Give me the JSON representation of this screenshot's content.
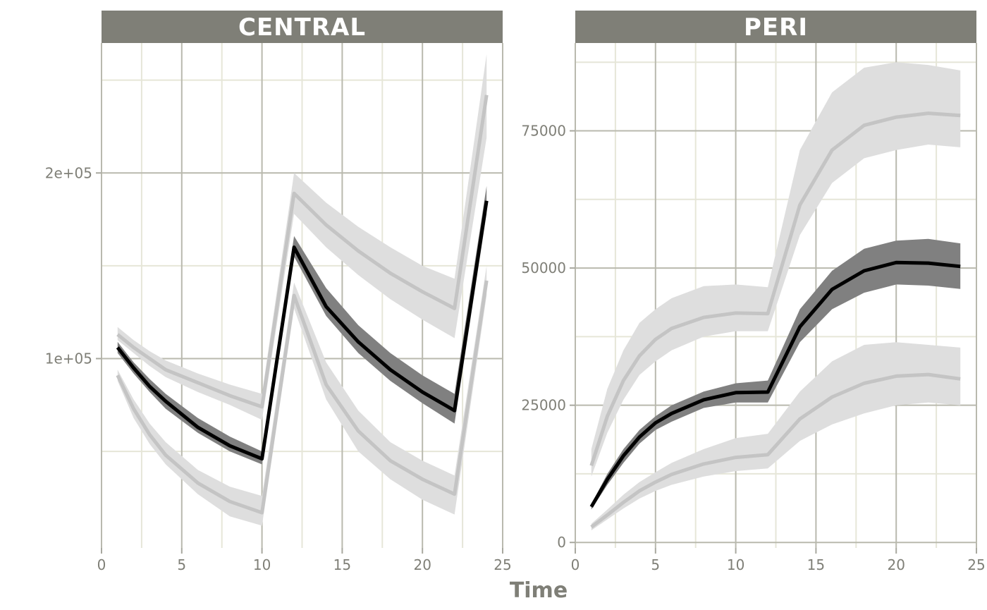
{
  "chart_data": {
    "type": "line",
    "xlabel": "Time",
    "ylabel": "",
    "panels": [
      {
        "name": "CENTRAL",
        "xlim": [
          0,
          25
        ],
        "ylim": [
          -2000,
          270000
        ],
        "x_ticks": [
          0,
          5,
          10,
          15,
          20,
          25
        ],
        "y_ticks": [
          100000,
          200000
        ],
        "y_tick_labels": [
          "1e+05",
          "2e+05"
        ],
        "y_minor": [
          50000,
          150000,
          250000
        ],
        "series": [
          {
            "role": "upper-percentile",
            "x": [
              1,
              2,
              3,
              4,
              6,
              8,
              10,
              12,
              14,
              16,
              18,
              20,
              22,
              24
            ],
            "y": [
              113000,
              106000,
              100000,
              94000,
              87000,
              80000,
              74000,
              189000,
              172000,
              158000,
              146000,
              136000,
              127000,
              242000
            ],
            "lo": [
              110000,
              103000,
              96000,
              90000,
              82000,
              75000,
              67000,
              178000,
              160000,
              145000,
              132000,
              121000,
              111000,
              219000
            ],
            "hi": [
              117000,
              110000,
              104000,
              99000,
              92000,
              86000,
              81000,
              200000,
              184000,
              171000,
              160000,
              150000,
              143000,
              264000
            ]
          },
          {
            "role": "median",
            "x": [
              1,
              2,
              3,
              4,
              6,
              8,
              10,
              12,
              14,
              16,
              18,
              20,
              22,
              24
            ],
            "y": [
              106000,
              95000,
              85000,
              77000,
              63000,
              53000,
              46000,
              160000,
              128000,
              109000,
              94000,
              82000,
              72000,
              185000
            ],
            "lo": [
              103000,
              92000,
              82000,
              73000,
              60000,
              50000,
              43000,
              155000,
              123000,
              103000,
              88000,
              76000,
              65000,
              178000
            ],
            "hi": [
              109000,
              98000,
              89000,
              81000,
              68000,
              58000,
              50000,
              166000,
              138000,
              118000,
              103000,
              91000,
              81000,
              193000
            ]
          },
          {
            "role": "lower-percentile",
            "x": [
              1,
              2,
              3,
              4,
              6,
              8,
              10,
              12,
              14,
              16,
              18,
              20,
              22,
              24
            ],
            "y": [
              91000,
              73000,
              59000,
              48000,
              33000,
              23000,
              17000,
              134000,
              86000,
              61000,
              45000,
              35000,
              27000,
              142000
            ],
            "lo": [
              88000,
              68000,
              54000,
              43000,
              27000,
              15000,
              10000,
              127000,
              78000,
              50000,
              35000,
              24000,
              16000,
              134000
            ],
            "hi": [
              94000,
              78000,
              65000,
              55000,
              40000,
              31000,
              26000,
              141000,
              98000,
              72000,
              55000,
              45000,
              37000,
              150000
            ]
          }
        ]
      },
      {
        "name": "PERI",
        "xlim": [
          0,
          25
        ],
        "ylim": [
          -1000,
          91000
        ],
        "x_ticks": [
          0,
          5,
          10,
          15,
          20,
          25
        ],
        "y_ticks": [
          0,
          25000,
          50000,
          75000
        ],
        "y_tick_labels": [
          "0",
          "25000",
          "50000",
          "75000"
        ],
        "y_minor": [
          12500,
          37500,
          62500,
          87500
        ],
        "series": [
          {
            "role": "upper-percentile",
            "x": [
              1,
              2,
              3,
              4,
              5,
              6,
              8,
              10,
              12,
              14,
              16,
              18,
              20,
              22,
              24
            ],
            "y": [
              14000,
              23000,
              29500,
              34000,
              37000,
              39000,
              41000,
              41800,
              41700,
              61500,
              71500,
              76000,
              77500,
              78200,
              77800
            ],
            "lo": [
              12000,
              20000,
              26000,
              30500,
              33000,
              35000,
              37500,
              38500,
              38500,
              56000,
              65500,
              70000,
              71500,
              72500,
              72000
            ],
            "hi": [
              17000,
              28000,
              35000,
              40000,
              42500,
              44500,
              46700,
              47000,
              46500,
              71500,
              82000,
              86500,
              87500,
              87000,
              86000
            ]
          },
          {
            "role": "median",
            "x": [
              1,
              2,
              3,
              4,
              5,
              6,
              8,
              10,
              12,
              14,
              16,
              18,
              20,
              22,
              24
            ],
            "y": [
              6500,
              11500,
              15800,
              19200,
              21800,
              23500,
              26000,
              27300,
              27400,
              39300,
              46100,
              49500,
              51000,
              50900,
              50300
            ],
            "lo": [
              6000,
              10500,
              14500,
              18000,
              20500,
              22000,
              24500,
              25500,
              25500,
              36500,
              42500,
              45500,
              47000,
              46800,
              46200
            ],
            "hi": [
              7000,
              12500,
              17000,
              20500,
              23000,
              25000,
              27500,
              29000,
              29500,
              42500,
              49500,
              53500,
              55000,
              55300,
              54500
            ]
          },
          {
            "role": "lower-percentile",
            "x": [
              1,
              2,
              3,
              4,
              5,
              6,
              8,
              10,
              12,
              14,
              16,
              18,
              20,
              22,
              24
            ],
            "y": [
              2800,
              5000,
              7300,
              9400,
              11000,
              12400,
              14300,
              15500,
              16000,
              22500,
              26500,
              29000,
              30300,
              30600,
              29800
            ],
            "lo": [
              2200,
              4200,
              6200,
              8000,
              9400,
              10500,
              12000,
              13000,
              13500,
              18500,
              21500,
              23500,
              25000,
              25500,
              25000
            ],
            "hi": [
              3400,
              6000,
              8700,
              11000,
              12800,
              14500,
              17000,
              19000,
              19800,
              27500,
              33000,
              36000,
              36500,
              36000,
              35500
            ]
          }
        ]
      }
    ]
  },
  "style": {
    "strip_fill": "#7f7f77",
    "strip_text": "#ffffff",
    "grid_major": "#b9b9ae",
    "grid_minor": "#e6e6d8",
    "median_line": "#000000",
    "median_band": "#808080",
    "percentile_line": "#c4c4c4",
    "percentile_band": "#dedede"
  }
}
